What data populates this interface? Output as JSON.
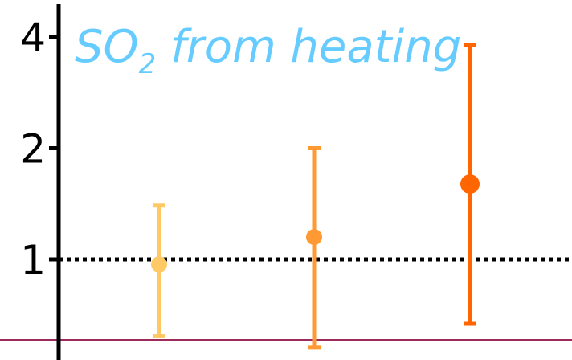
{
  "chart_data": {
    "type": "scatter",
    "title": {
      "main": "SO",
      "subscript": "2",
      "rest": " from heating"
    },
    "y_scale": "log",
    "yticks": [
      {
        "value": 1,
        "label": "1"
      },
      {
        "value": 2,
        "label": "2"
      },
      {
        "value": 4,
        "label": "4"
      }
    ],
    "ylim": [
      0.6,
      4.4
    ],
    "reference_line": {
      "value": 1,
      "style": "dotted",
      "color": "#000000"
    },
    "baseline_color": "#9c2a5e",
    "points": [
      {
        "estimate": 0.97,
        "lower": 0.62,
        "upper": 1.4,
        "color": "#ffc966"
      },
      {
        "estimate": 1.15,
        "lower": 0.58,
        "upper": 2.0,
        "color": "#ff9933"
      },
      {
        "estimate": 1.6,
        "lower": 0.67,
        "upper": 3.8,
        "color": "#ff6600"
      }
    ],
    "title_color": "#66ccff"
  }
}
